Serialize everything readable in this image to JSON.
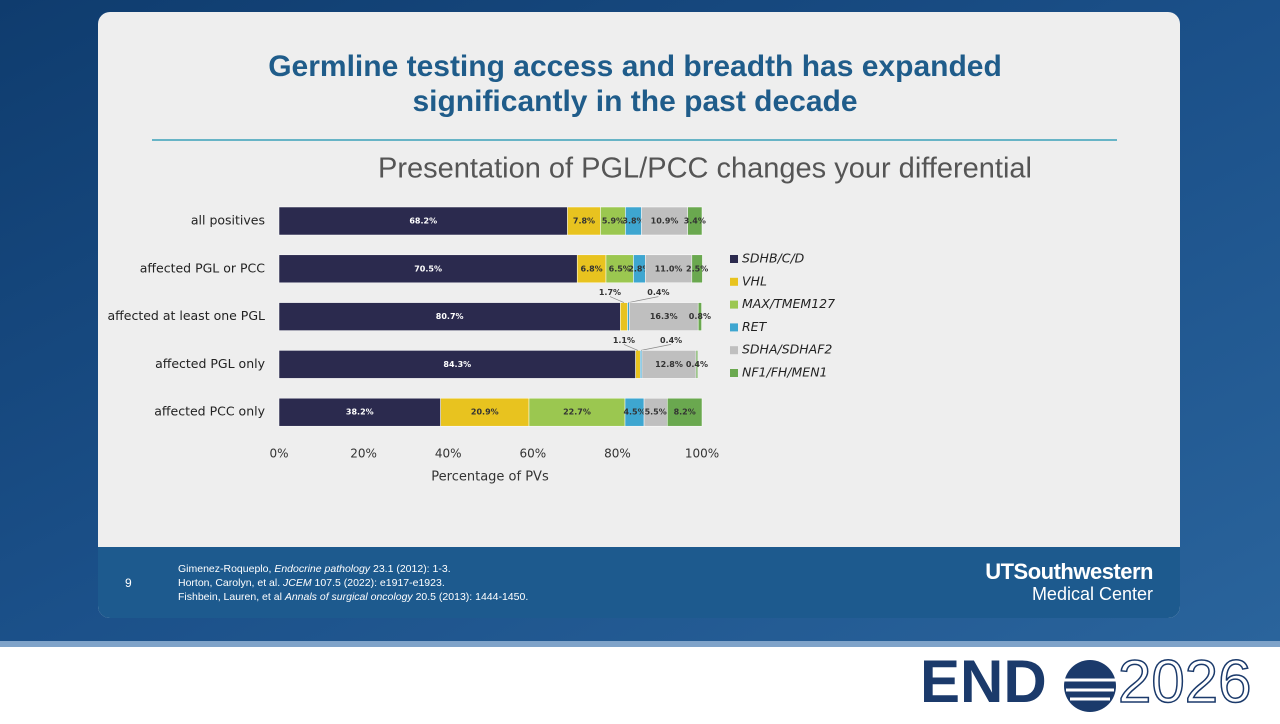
{
  "slide": {
    "title_lines": [
      "Germline testing access and breadth has expanded",
      "significantly in the past decade"
    ],
    "page_number": "9",
    "references": [
      [
        "Gimenez-Roqueplo, ",
        "Endocrine pathology",
        " 23.1 (2012): 1-3."
      ],
      [
        "Horton, Carolyn, et al. ",
        "JCEM",
        " 107.5 (2022): e1917-e1923."
      ],
      [
        "Fishbein, Lauren, et al ",
        "Annals of surgical oncology",
        " 20.5 (2013): 1444-1450."
      ]
    ],
    "institution": [
      "UTSouthwestern",
      "Medical Center"
    ],
    "event_logo": [
      "END",
      "2026"
    ]
  },
  "chart_data": {
    "type": "stacked_barh",
    "title": "Presentation of PGL/PCC changes your differential",
    "x_label": "Percentage of PVs",
    "categories": [
      "all positives",
      "affected PGL or PCC",
      "affected at least one PGL",
      "affected PGL only",
      "affected PCC only"
    ],
    "series": [
      {
        "name": "SDHB/C/D",
        "color": "#2b2a4e",
        "values": [
          68.2,
          70.5,
          80.7,
          84.3,
          38.2
        ],
        "value_labels": [
          "68.2%",
          "70.5%",
          "80.7%",
          "84.3%",
          "38.2%"
        ]
      },
      {
        "name": "VHL",
        "color": "#e8c31f",
        "values": [
          7.8,
          6.8,
          1.7,
          1.1,
          20.9
        ],
        "value_labels": [
          "7.8%",
          "6.8%",
          "1.7%",
          "1.1%",
          "20.9%"
        ]
      },
      {
        "name": "MAX/TMEM127",
        "color": "#9bc750",
        "values": [
          5.9,
          6.5,
          null,
          null,
          22.7
        ],
        "value_labels": [
          "5.9%",
          "6.5%",
          null,
          null,
          "22.7%"
        ]
      },
      {
        "name": "RET",
        "color": "#3ea6d0",
        "values": [
          3.8,
          2.8,
          0.4,
          0.4,
          4.5
        ],
        "value_labels": [
          "3.8%",
          "2.8%",
          "0.4%",
          "0.4%",
          "4.5%"
        ]
      },
      {
        "name": "SDHA/SDHAF2",
        "color": "#bfbfbf",
        "values": [
          10.9,
          11.0,
          16.3,
          12.8,
          5.5
        ],
        "value_labels": [
          "10.9%",
          "11.0%",
          "16.3%",
          "12.8%",
          "5.5%"
        ]
      },
      {
        "name": "NF1/FH/MEN1",
        "color": "#6aa84f",
        "values": [
          3.4,
          2.5,
          0.8,
          0.4,
          8.2
        ],
        "value_labels": [
          "3.4%",
          "2.5%",
          "0.8%",
          "0.4%",
          "8.2%"
        ]
      }
    ],
    "xlim": [
      0,
      100
    ],
    "xticks": [
      {
        "value": 0,
        "label": "0%"
      },
      {
        "value": 20,
        "label": "20%"
      },
      {
        "value": 40,
        "label": "40%"
      },
      {
        "value": 60,
        "label": "60%"
      },
      {
        "value": 80,
        "label": "80%"
      },
      {
        "value": 100,
        "label": "100%"
      }
    ],
    "legend": "right"
  }
}
